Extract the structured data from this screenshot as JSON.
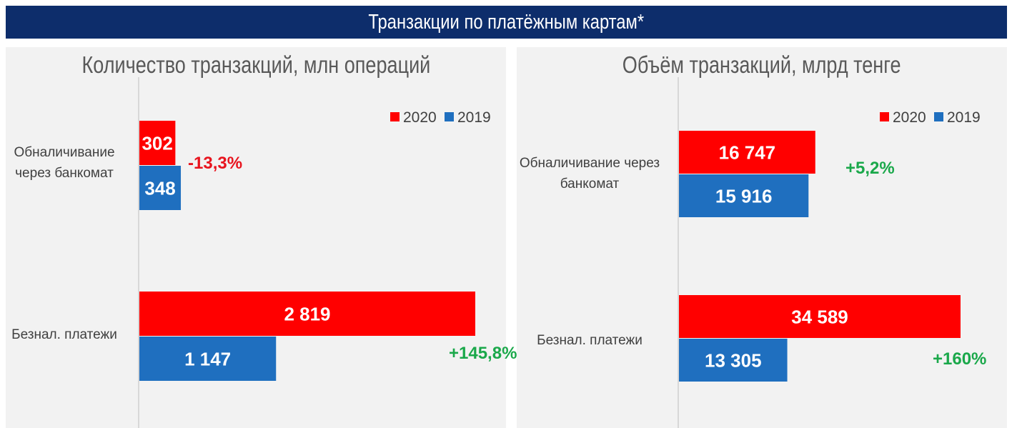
{
  "header": {
    "title": "Транзакции по платёжным картам*"
  },
  "colors": {
    "y2020": "#ff0000",
    "y2019": "#1f6fbf",
    "negative": "#e8141e",
    "positive": "#1aa84a"
  },
  "chart_data": [
    {
      "type": "bar",
      "orientation": "horizontal",
      "title": "Количество транзакций, млн операций",
      "categories": [
        "Обналичивание через банкомат",
        "Безнал. платежи"
      ],
      "category_lines": [
        [
          "Обналичивание",
          "через банкомат"
        ],
        [
          "Безнал. платежи"
        ]
      ],
      "series": [
        {
          "name": "2020",
          "values": [
            302,
            2819
          ],
          "labels": [
            "302",
            "2 819"
          ]
        },
        {
          "name": "2019",
          "values": [
            348,
            1147
          ],
          "labels": [
            "348",
            "1 147"
          ]
        }
      ],
      "changes": [
        {
          "text": "-13,3%",
          "sign": "negative"
        },
        {
          "text": "+145,8%",
          "sign": "positive"
        }
      ],
      "legend_position": "top-right",
      "grid": false
    },
    {
      "type": "bar",
      "orientation": "horizontal",
      "title": "Объём транзакций, млрд тенге",
      "categories": [
        "Обналичивание через банкомат",
        "Безнал. платежи"
      ],
      "category_lines": [
        [
          "Обналичивание через",
          "банкомат"
        ],
        [
          "Безнал. платежи"
        ]
      ],
      "series": [
        {
          "name": "2020",
          "values": [
            16747,
            34589
          ],
          "labels": [
            "16 747",
            "34 589"
          ]
        },
        {
          "name": "2019",
          "values": [
            15916,
            13305
          ],
          "labels": [
            "15 916",
            "13 305"
          ]
        }
      ],
      "changes": [
        {
          "text": "+5,2%",
          "sign": "positive"
        },
        {
          "text": "+160%",
          "sign": "positive"
        }
      ],
      "legend_position": "top-right",
      "grid": false
    }
  ]
}
